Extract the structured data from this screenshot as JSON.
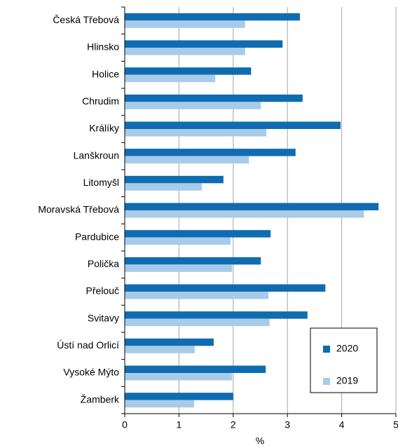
{
  "chart_data": {
    "type": "bar",
    "orientation": "horizontal",
    "categories": [
      "Česká Třebová",
      "Hlinsko",
      "Holice",
      "Chrudim",
      "Králíky",
      "Lanškroun",
      "Litomyšl",
      "Moravská Třebová",
      "Pardubice",
      "Polička",
      "Přelouč",
      "Svitavy",
      "Ústí nad Orlicí",
      "Vysoké Mýto",
      "Žamberk"
    ],
    "series": [
      {
        "name": "2020",
        "color": "#0f6cb1",
        "values": [
          3.23,
          2.91,
          2.33,
          3.28,
          3.98,
          3.15,
          1.82,
          4.68,
          2.69,
          2.51,
          3.7,
          3.37,
          1.64,
          2.6,
          2.0
        ]
      },
      {
        "name": "2019",
        "color": "#a7cbe9",
        "values": [
          2.22,
          2.22,
          1.67,
          2.51,
          2.61,
          2.29,
          1.42,
          4.41,
          1.95,
          1.98,
          2.65,
          2.67,
          1.29,
          1.98,
          1.28
        ]
      }
    ],
    "xlabel": "%",
    "xlim": [
      0,
      5
    ],
    "xticks": [
      0,
      1,
      2,
      3,
      4,
      5
    ],
    "grid": true,
    "legend": "lower right"
  }
}
